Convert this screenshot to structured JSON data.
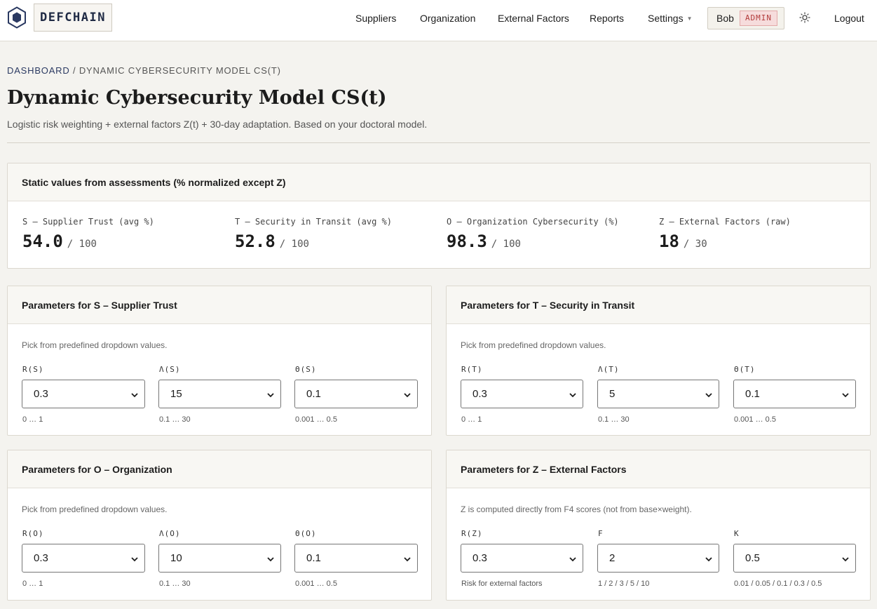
{
  "brand": {
    "name": "DEFCHAIN"
  },
  "nav": {
    "suppliers": "Suppliers",
    "organization": "Organization",
    "external_factors": "External Factors",
    "reports": "Reports",
    "settings": "Settings",
    "user": "Bob",
    "role": "ADMIN",
    "logout": "Logout"
  },
  "breadcrumb": {
    "home": "DASHBOARD",
    "sep": "/",
    "current": "DYNAMIC CYBERSECURITY MODEL CS(T)"
  },
  "header": {
    "title": "Dynamic Cybersecurity Model CS(t)",
    "subtitle": "Logistic risk weighting + external factors Z(t) + 30-day adaptation. Based on your doctoral model."
  },
  "static_card": {
    "title": "Static values from assessments (% normalized except Z)",
    "stats": [
      {
        "label": "S — Supplier Trust (avg %)",
        "value": "54.0",
        "max": "/ 100"
      },
      {
        "label": "T — Security in Transit (avg %)",
        "value": "52.8",
        "max": "/ 100"
      },
      {
        "label": "O — Organization Cybersecurity (%)",
        "value": "98.3",
        "max": "/ 100"
      },
      {
        "label": "Z — External Factors (raw)",
        "value": "18",
        "max": "/ 30"
      }
    ]
  },
  "param_cards": [
    {
      "title": "Parameters for S – Supplier Trust",
      "desc": "Pick from predefined dropdown values.",
      "fields": [
        {
          "label": "R(S)",
          "value": "0.3",
          "hint": "0 … 1"
        },
        {
          "label": "Λ(S)",
          "value": "15",
          "hint": "0.1 … 30"
        },
        {
          "label": "Θ(S)",
          "value": "0.1",
          "hint": "0.001 … 0.5"
        }
      ]
    },
    {
      "title": "Parameters for T – Security in Transit",
      "desc": "Pick from predefined dropdown values.",
      "fields": [
        {
          "label": "R(T)",
          "value": "0.3",
          "hint": "0 … 1"
        },
        {
          "label": "Λ(T)",
          "value": "5",
          "hint": "0.1 … 30"
        },
        {
          "label": "Θ(T)",
          "value": "0.1",
          "hint": "0.001 … 0.5"
        }
      ]
    },
    {
      "title": "Parameters for O – Organization",
      "desc": "Pick from predefined dropdown values.",
      "fields": [
        {
          "label": "R(O)",
          "value": "0.3",
          "hint": "0 … 1"
        },
        {
          "label": "Λ(O)",
          "value": "10",
          "hint": "0.1 … 30"
        },
        {
          "label": "Θ(O)",
          "value": "0.1",
          "hint": "0.001 … 0.5"
        }
      ]
    },
    {
      "title": "Parameters for Z – External Factors",
      "desc": "Z is computed directly from F4 scores (not from base×weight).",
      "fields": [
        {
          "label": "R(Z)",
          "value": "0.3",
          "hint": "Risk for external factors"
        },
        {
          "label": "F",
          "value": "2",
          "hint": "1 / 2 / 3 / 5 / 10"
        },
        {
          "label": "K",
          "value": "0.5",
          "hint": "0.01 / 0.05 / 0.1 / 0.3 / 0.5"
        }
      ]
    }
  ],
  "icons": {
    "logo": "hexagon-logo-icon",
    "theme": "sun-icon",
    "dropdown": "chevron-down-icon",
    "settings_caret": "caret-down-icon"
  }
}
